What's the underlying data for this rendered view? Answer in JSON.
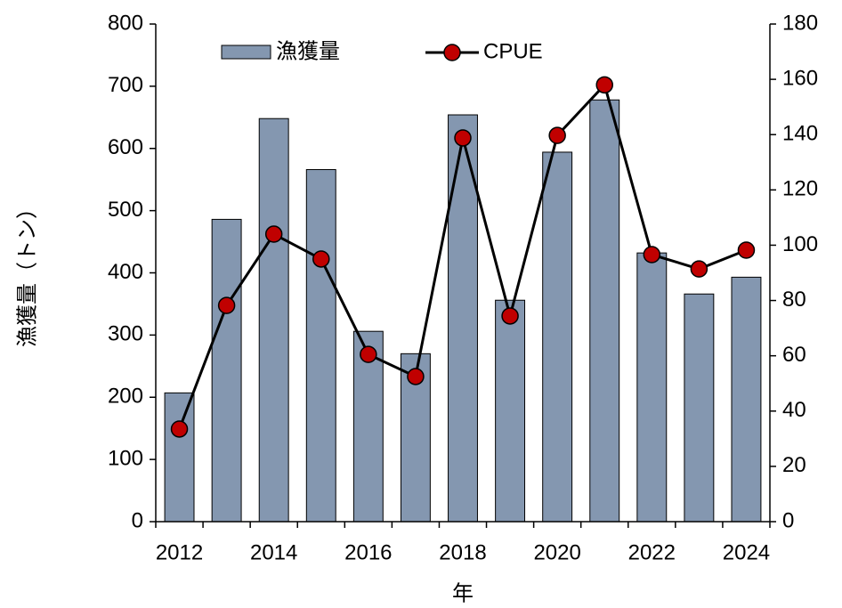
{
  "chart_data": {
    "type": "bar_line",
    "categories": [
      "2012",
      null,
      "2014",
      null,
      "2016",
      null,
      "2018",
      null,
      "2020",
      null,
      "2022",
      null,
      "2024"
    ],
    "series": [
      {
        "name": "漁獲量",
        "type": "bar",
        "color": "#8497b0",
        "axis": "y",
        "values": [
          207,
          486,
          648,
          566,
          306,
          270,
          654,
          356,
          594,
          678,
          432,
          366,
          393
        ]
      },
      {
        "name": "CPUE",
        "type": "line",
        "color": "#c00000",
        "axis": "y2",
        "values": [
          33.5,
          78.2,
          104,
          95,
          60.5,
          52.5,
          138.8,
          74.4,
          139.7,
          158,
          96.6,
          91.4,
          98.2
        ]
      }
    ],
    "ylim": [
      0,
      800
    ],
    "yticks": [
      0,
      100,
      200,
      300,
      400,
      500,
      600,
      700,
      800
    ],
    "y2lim": [
      0,
      180
    ],
    "y2ticks": [
      0,
      20,
      40,
      60,
      80,
      100,
      120,
      140,
      160,
      180
    ],
    "ylabel": "漁獲量（トン）",
    "xlabel": "年",
    "legend": "top-left"
  }
}
